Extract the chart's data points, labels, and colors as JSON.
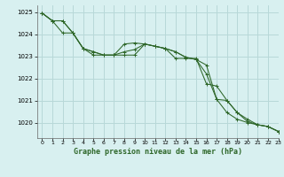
{
  "title": "Graphe pression niveau de la mer (hPa)",
  "background_color": "#d8f0f0",
  "grid_color_major": "#b8d8d8",
  "grid_color_minor": "#cce8e8",
  "line_color": "#2d6628",
  "xlim": [
    -0.5,
    23
  ],
  "ylim": [
    1019.3,
    1025.3
  ],
  "yticks": [
    1020,
    1021,
    1022,
    1023,
    1024,
    1025
  ],
  "xticks": [
    0,
    1,
    2,
    3,
    4,
    5,
    6,
    7,
    8,
    9,
    10,
    11,
    12,
    13,
    14,
    15,
    16,
    17,
    18,
    19,
    20,
    21,
    22,
    23
  ],
  "s1": [
    1024.95,
    1024.6,
    1024.6,
    1024.05,
    1023.35,
    1023.2,
    1023.05,
    1023.05,
    1023.55,
    1023.6,
    1023.55,
    1023.45,
    1023.35,
    1023.2,
    1022.95,
    1022.85,
    1022.6,
    1021.05,
    1020.45,
    1020.15,
    1020.0,
    1019.9,
    1019.82,
    1019.6
  ],
  "s2": [
    1024.95,
    1024.6,
    1024.6,
    1024.05,
    1023.35,
    1023.2,
    1023.05,
    1023.05,
    1023.05,
    1023.05,
    1023.55,
    1023.45,
    1023.35,
    1023.2,
    1022.95,
    1022.85,
    1022.2,
    1021.05,
    1021.0,
    1020.45,
    1020.15,
    1019.9,
    1019.82,
    1019.6
  ],
  "s3": [
    1024.95,
    1024.6,
    1024.05,
    1024.05,
    1023.35,
    1023.05,
    1023.05,
    1023.05,
    1023.2,
    1023.3,
    1023.55,
    1023.45,
    1023.35,
    1022.9,
    1022.9,
    1022.9,
    1021.75,
    1021.65,
    1021.0,
    1020.45,
    1020.05,
    1019.9,
    1019.82,
    1019.6
  ]
}
